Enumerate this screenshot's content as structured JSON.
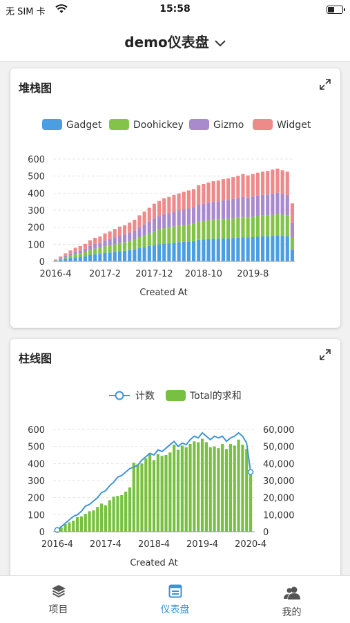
{
  "status_bar": {
    "carrier": "无 SIM 卡",
    "time": "15:58"
  },
  "header": {
    "title": "demo仪表盘"
  },
  "cards": [
    {
      "title": "堆栈图"
    },
    {
      "title": "柱线图"
    }
  ],
  "tabs": [
    {
      "label": "项目",
      "icon": "layers-icon",
      "active": false
    },
    {
      "label": "仪表盘",
      "icon": "dashboard-icon",
      "active": true
    },
    {
      "label": "我的",
      "icon": "users-icon",
      "active": false
    }
  ],
  "colors": {
    "gadget": "#4c9ee3",
    "doohickey": "#84c34a",
    "gizmo": "#a98acd",
    "widget": "#ef8a8a",
    "line": "#3f94d8",
    "bar": "#78c041",
    "accent": "#3a92d9"
  },
  "chart_data": [
    {
      "type": "bar",
      "stacked": true,
      "title": "堆栈图",
      "xlabel": "Created At",
      "ylabel": "",
      "ylim": [
        0,
        600
      ],
      "yticks": [
        0,
        100,
        200,
        300,
        400,
        500,
        600
      ],
      "xticks": [
        "2016-4",
        "2017-2",
        "2017-12",
        "2018-10",
        "2019-8"
      ],
      "legend_position": "top",
      "categories": [
        "2016-4",
        "2016-5",
        "2016-6",
        "2016-7",
        "2016-8",
        "2016-9",
        "2016-10",
        "2016-11",
        "2016-12",
        "2017-1",
        "2017-2",
        "2017-3",
        "2017-4",
        "2017-5",
        "2017-6",
        "2017-7",
        "2017-8",
        "2017-9",
        "2017-10",
        "2017-11",
        "2017-12",
        "2018-1",
        "2018-2",
        "2018-3",
        "2018-4",
        "2018-5",
        "2018-6",
        "2018-7",
        "2018-8",
        "2018-9",
        "2018-10",
        "2018-11",
        "2018-12",
        "2019-1",
        "2019-2",
        "2019-3",
        "2019-4",
        "2019-5",
        "2019-6",
        "2019-7",
        "2019-8",
        "2019-9",
        "2019-10",
        "2019-11",
        "2019-12",
        "2020-1",
        "2020-2",
        "2020-3",
        "2020-4"
      ],
      "series": [
        {
          "name": "Gadget",
          "values": [
            3,
            8,
            14,
            20,
            24,
            26,
            30,
            38,
            42,
            44,
            50,
            52,
            56,
            60,
            62,
            66,
            70,
            78,
            84,
            90,
            96,
            100,
            104,
            106,
            110,
            112,
            114,
            116,
            118,
            126,
            128,
            130,
            132,
            132,
            134,
            134,
            136,
            138,
            140,
            140,
            142,
            144,
            146,
            146,
            148,
            150,
            148,
            146,
            70
          ]
        },
        {
          "name": "Doohickey",
          "values": [
            2,
            6,
            10,
            14,
            18,
            20,
            24,
            28,
            32,
            34,
            38,
            42,
            44,
            48,
            50,
            54,
            58,
            64,
            70,
            76,
            82,
            86,
            90,
            92,
            94,
            96,
            98,
            100,
            102,
            106,
            108,
            110,
            112,
            112,
            114,
            114,
            116,
            118,
            120,
            118,
            120,
            122,
            124,
            124,
            126,
            128,
            126,
            124,
            68
          ]
        },
        {
          "name": "Gizmo",
          "values": [
            1,
            5,
            9,
            12,
            16,
            18,
            20,
            26,
            28,
            30,
            34,
            36,
            40,
            42,
            44,
            48,
            52,
            58,
            64,
            68,
            74,
            78,
            82,
            84,
            88,
            90,
            92,
            94,
            96,
            100,
            102,
            104,
            106,
            108,
            110,
            112,
            114,
            116,
            118,
            116,
            118,
            120,
            120,
            122,
            124,
            124,
            122,
            120,
            90
          ]
        },
        {
          "name": "Widget",
          "values": [
            5,
            10,
            14,
            18,
            22,
            26,
            28,
            32,
            36,
            38,
            42,
            46,
            50,
            54,
            56,
            60,
            64,
            70,
            74,
            80,
            86,
            90,
            94,
            96,
            98,
            100,
            104,
            106,
            108,
            114,
            116,
            118,
            120,
            122,
            124,
            126,
            128,
            130,
            134,
            130,
            132,
            134,
            136,
            138,
            140,
            142,
            138,
            136,
            112
          ]
        }
      ]
    },
    {
      "type": "bar+line",
      "title": "柱线图",
      "xlabel": "Created At",
      "ylim_left": [
        0,
        600
      ],
      "ylim_right": [
        0,
        60000
      ],
      "yticks_left": [
        0,
        100,
        200,
        300,
        400,
        500,
        600
      ],
      "yticks_right": [
        "0",
        "10,000",
        "20,000",
        "30,000",
        "40,000",
        "50,000",
        "60,000"
      ],
      "xticks": [
        "2016-4",
        "2017-4",
        "2018-4",
        "2019-4",
        "2020-4"
      ],
      "legend_position": "top",
      "categories": [
        "2016-4",
        "2016-5",
        "2016-6",
        "2016-7",
        "2016-8",
        "2016-9",
        "2016-10",
        "2016-11",
        "2016-12",
        "2017-1",
        "2017-2",
        "2017-3",
        "2017-4",
        "2017-5",
        "2017-6",
        "2017-7",
        "2017-8",
        "2017-9",
        "2017-10",
        "2017-11",
        "2017-12",
        "2018-1",
        "2018-2",
        "2018-3",
        "2018-4",
        "2018-5",
        "2018-6",
        "2018-7",
        "2018-8",
        "2018-9",
        "2018-10",
        "2018-11",
        "2018-12",
        "2019-1",
        "2019-2",
        "2019-3",
        "2019-4",
        "2019-5",
        "2019-6",
        "2019-7",
        "2019-8",
        "2019-9",
        "2019-10",
        "2019-11",
        "2019-12",
        "2020-1",
        "2020-2",
        "2020-3",
        "2020-4"
      ],
      "series": [
        {
          "name": "计数",
          "type": "line",
          "axis": "left",
          "values": [
            10,
            30,
            50,
            70,
            90,
            100,
            120,
            150,
            160,
            180,
            200,
            230,
            240,
            270,
            290,
            320,
            330,
            350,
            370,
            380,
            390,
            420,
            440,
            460,
            450,
            480,
            470,
            490,
            510,
            530,
            500,
            520,
            510,
            540,
            560,
            550,
            580,
            560,
            540,
            560,
            550,
            560,
            530,
            550,
            560,
            580,
            560,
            520,
            350
          ]
        },
        {
          "name": "Total的求和",
          "type": "bar",
          "axis": "right",
          "values": [
            500,
            2500,
            4500,
            5500,
            6500,
            8500,
            9000,
            10500,
            12000,
            12500,
            14500,
            16500,
            15500,
            18500,
            20500,
            21000,
            21500,
            23500,
            26000,
            40500,
            39500,
            40000,
            43000,
            46000,
            42000,
            45500,
            44500,
            45000,
            46500,
            51000,
            48000,
            50500,
            49500,
            51500,
            53000,
            52500,
            54500,
            52500,
            49500,
            50000,
            49000,
            51500,
            48500,
            51500,
            50500,
            54000,
            51000,
            48500,
            36000
          ]
        }
      ]
    }
  ]
}
